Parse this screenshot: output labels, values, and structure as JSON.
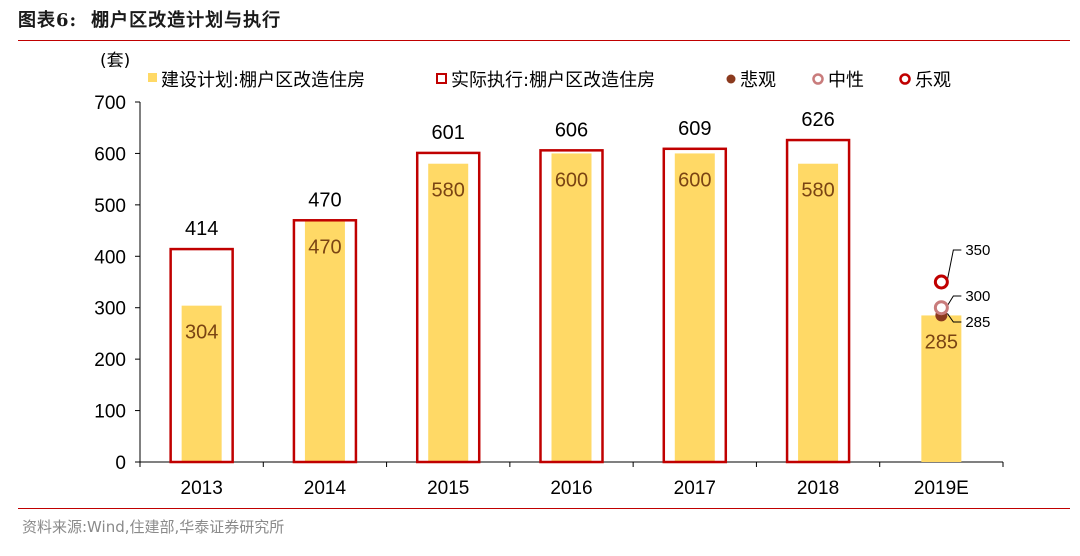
{
  "header": {
    "label": "图表6:",
    "title": "棚户区改造计划与执行"
  },
  "footer": {
    "source": "资料来源:Wind,住建部,华泰证券研究所"
  },
  "colors": {
    "plan_bar": "#ffd966",
    "actual_outline": "#c00000",
    "rule": "#c00000",
    "pessimistic": "#8b3a1e",
    "neutral": "#c97c7c",
    "optimistic": "#c00000",
    "plan_label": "#7a4413"
  },
  "chart_data": {
    "type": "bar",
    "unit_label": "(套)",
    "categories": [
      "2013",
      "2014",
      "2015",
      "2016",
      "2017",
      "2018",
      "2019E"
    ],
    "series": [
      {
        "name": "建设计划:棚户区改造住房",
        "style": "filled-bar",
        "values": [
          304,
          470,
          580,
          600,
          600,
          580,
          285
        ]
      },
      {
        "name": "实际执行:棚户区改造住房",
        "style": "outline-bar",
        "values": [
          414,
          470,
          601,
          606,
          609,
          626,
          null
        ]
      }
    ],
    "scenarios": {
      "category": "2019E",
      "points": [
        {
          "name": "悲观",
          "value": 285,
          "label": "285",
          "style": "filled-dot"
        },
        {
          "name": "中性",
          "value": 300,
          "label": "300",
          "style": "ring-light"
        },
        {
          "name": "乐观",
          "value": 350,
          "label": "350",
          "style": "ring-dark"
        }
      ]
    },
    "ylim": [
      0,
      700
    ],
    "yticks": [
      0,
      100,
      200,
      300,
      400,
      500,
      600,
      700
    ],
    "xlabel": "",
    "ylabel": "(套)",
    "grid": false,
    "legend": "top"
  }
}
